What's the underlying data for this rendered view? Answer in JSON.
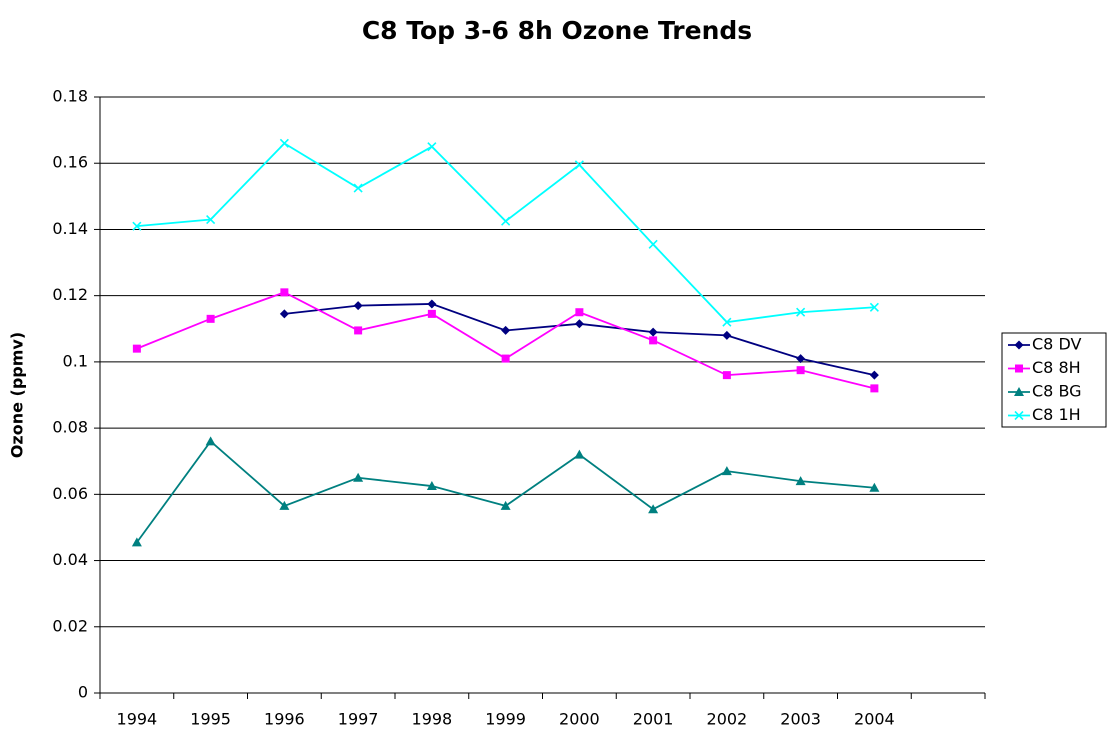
{
  "chart_data": {
    "type": "line",
    "title": "C8 Top 3-6 8h Ozone Trends",
    "y_label": "Ozone (ppmv)",
    "categories": [
      "1994",
      "1995",
      "1996",
      "1997",
      "1998",
      "1999",
      "2000",
      "2001",
      "2002",
      "2003",
      "2004",
      null
    ],
    "series": [
      {
        "name": "C8 DV",
        "color": "#000080",
        "marker": "diamond",
        "values": [
          null,
          null,
          0.1145,
          0.117,
          0.1175,
          0.1095,
          0.1115,
          0.109,
          0.108,
          0.101,
          0.096,
          null
        ]
      },
      {
        "name": "C8 8H",
        "color": "#ff00ff",
        "marker": "square",
        "values": [
          0.104,
          0.113,
          0.121,
          0.1095,
          0.1145,
          0.101,
          0.115,
          0.1065,
          0.096,
          0.0975,
          0.092,
          null
        ]
      },
      {
        "name": "C8 BG",
        "color": "#008080",
        "marker": "triangle",
        "values": [
          0.0455,
          0.076,
          0.0565,
          0.065,
          0.0625,
          0.0565,
          0.072,
          0.0555,
          0.067,
          0.064,
          0.062,
          null
        ]
      },
      {
        "name": "C8 1H",
        "color": "#00ffff",
        "marker": "x",
        "values": [
          0.141,
          0.143,
          0.166,
          0.1525,
          0.165,
          0.1425,
          0.1595,
          0.1355,
          0.112,
          0.115,
          0.1165,
          null
        ]
      }
    ],
    "ylim": [
      0,
      0.18
    ],
    "yticks": [
      0,
      0.02,
      0.04,
      0.06,
      0.08,
      0.1,
      0.12,
      0.14,
      0.16,
      0.18
    ],
    "grid": true,
    "legend": "right"
  }
}
